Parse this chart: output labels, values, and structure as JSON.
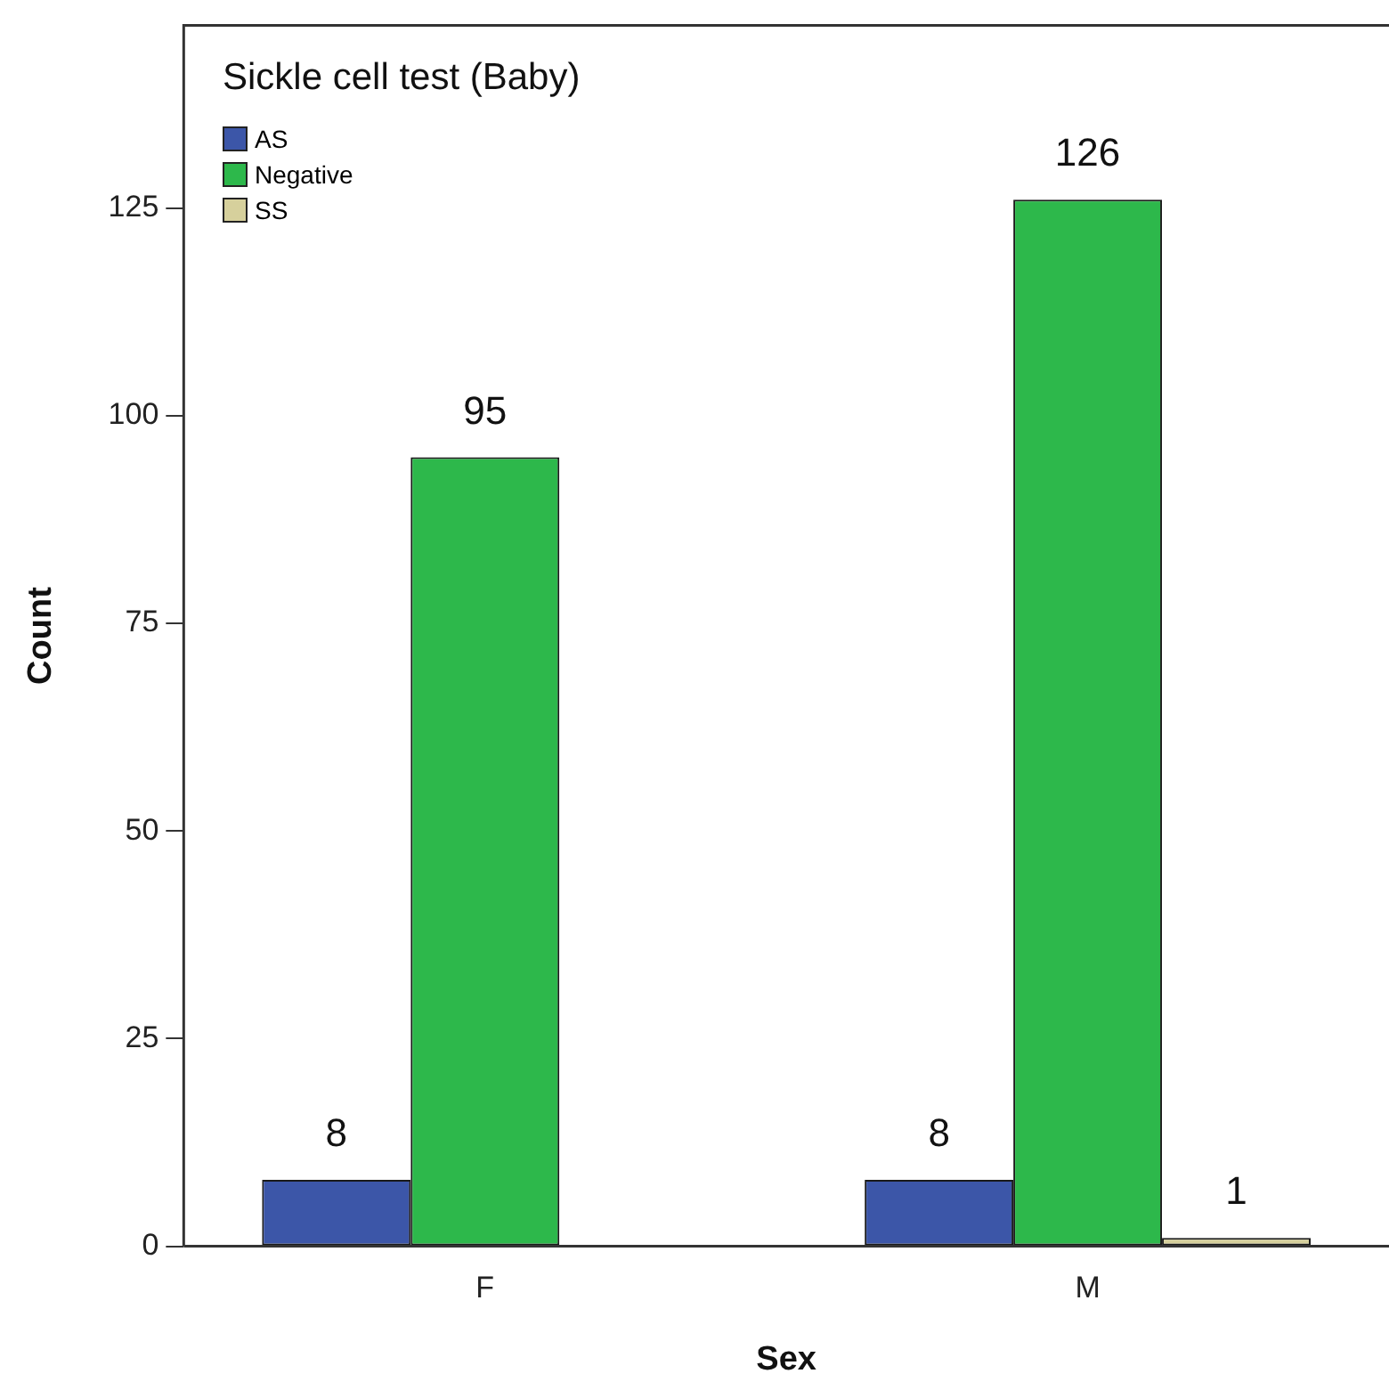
{
  "chart_data": {
    "type": "bar",
    "legend_title": "Sickle cell test (Baby)",
    "xlabel": "Sex",
    "ylabel": "Count",
    "categories": [
      "F",
      "M"
    ],
    "series": [
      {
        "name": "AS",
        "color": "#3c56a8",
        "values": [
          8,
          8
        ]
      },
      {
        "name": "Negative",
        "color": "#2db84b",
        "values": [
          95,
          126
        ]
      },
      {
        "name": "SS",
        "color": "#d6d09c",
        "values": [
          null,
          1
        ]
      }
    ],
    "ylim": [
      0,
      147
    ],
    "yticks": [
      0,
      25,
      50,
      75,
      100,
      125
    ],
    "grid": false,
    "legend": "top left",
    "data_labels": true
  }
}
